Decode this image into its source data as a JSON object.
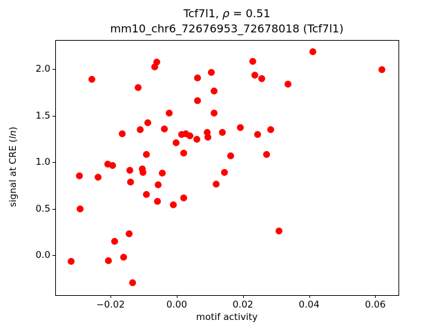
{
  "figure": {
    "title": {
      "prefix": "Tcf7l1, ",
      "rho": "ρ",
      "suffix": " = 0.51"
    },
    "subtitle": "mm10_chr6_72676953_72678018 (Tcf7l1)",
    "xlabel": "motif activity",
    "ylabel": {
      "prefix": "signal at CRE (",
      "italic": "ln",
      "suffix": ")"
    }
  },
  "chart_data": {
    "type": "scatter",
    "title": "Tcf7l1, ρ = 0.51",
    "subtitle": "mm10_chr6_72676953_72678018 (Tcf7l1)",
    "xlabel": "motif activity",
    "ylabel": "signal at CRE (ln)",
    "marker_color": "#ff0000",
    "marker_diameter_px": 10,
    "grid": false,
    "xlim": [
      -0.0367,
      0.0668
    ],
    "ylim": [
      -0.42,
      2.312
    ],
    "x_ticks": {
      "values": [
        -0.02,
        0.0,
        0.02,
        0.04,
        0.06
      ],
      "labels": [
        "−0.02",
        "0.00",
        "0.02",
        "0.04",
        "0.06"
      ]
    },
    "y_ticks": {
      "values": [
        0.0,
        0.5,
        1.0,
        1.5,
        2.0
      ],
      "labels": [
        "0.0",
        "0.5",
        "1.0",
        "1.5",
        "2.0"
      ]
    },
    "points": [
      [
        -0.0061,
        2.074
      ],
      [
        -0.0066,
        2.025
      ],
      [
        -0.0256,
        1.887
      ],
      [
        -0.0117,
        1.802
      ],
      [
        -0.0023,
        1.528
      ],
      [
        -0.0088,
        1.42
      ],
      [
        -0.011,
        1.35
      ],
      [
        -0.0165,
        1.304
      ],
      [
        0.023,
        2.079
      ],
      [
        0.0104,
        1.961
      ],
      [
        0.0063,
        1.906
      ],
      [
        0.0237,
        1.936
      ],
      [
        0.0257,
        1.894
      ],
      [
        0.0337,
        1.837
      ],
      [
        0.0112,
        1.763
      ],
      [
        0.0063,
        1.664
      ],
      [
        0.0112,
        1.528
      ],
      [
        0.0412,
        2.188
      ],
      [
        0.0621,
        1.993
      ],
      [
        -0.0037,
        1.356
      ],
      [
        0.0014,
        1.294
      ],
      [
        0.0028,
        1.306
      ],
      [
        0.004,
        1.281
      ],
      [
        0.006,
        1.244
      ],
      [
        -0.0002,
        1.207
      ],
      [
        0.0092,
        1.319
      ],
      [
        0.0094,
        1.269
      ],
      [
        0.0139,
        1.322
      ],
      [
        0.0193,
        1.37
      ],
      [
        0.0245,
        1.301
      ],
      [
        0.0285,
        1.346
      ],
      [
        0.0163,
        1.07
      ],
      [
        0.0271,
        1.086
      ],
      [
        -0.0092,
        1.081
      ],
      [
        0.0021,
        1.096
      ],
      [
        -0.0208,
        0.983
      ],
      [
        -0.0194,
        0.963
      ],
      [
        -0.0141,
        0.913
      ],
      [
        -0.0104,
        0.926
      ],
      [
        -0.0101,
        0.894
      ],
      [
        -0.0043,
        0.884
      ],
      [
        -0.0294,
        0.852
      ],
      [
        -0.0238,
        0.835
      ],
      [
        -0.0139,
        0.785
      ],
      [
        -0.0057,
        0.756
      ],
      [
        -0.0092,
        0.65
      ],
      [
        -0.0059,
        0.583
      ],
      [
        -0.0011,
        0.546
      ],
      [
        0.0021,
        0.613
      ],
      [
        0.0119,
        0.761
      ],
      [
        0.0144,
        0.891
      ],
      [
        -0.0292,
        0.499
      ],
      [
        -0.0144,
        0.235
      ],
      [
        -0.0187,
        0.15
      ],
      [
        -0.016,
        -0.02
      ],
      [
        -0.0206,
        -0.057
      ],
      [
        -0.032,
        -0.061
      ],
      [
        -0.0133,
        -0.296
      ],
      [
        0.0309,
        0.264
      ]
    ]
  }
}
